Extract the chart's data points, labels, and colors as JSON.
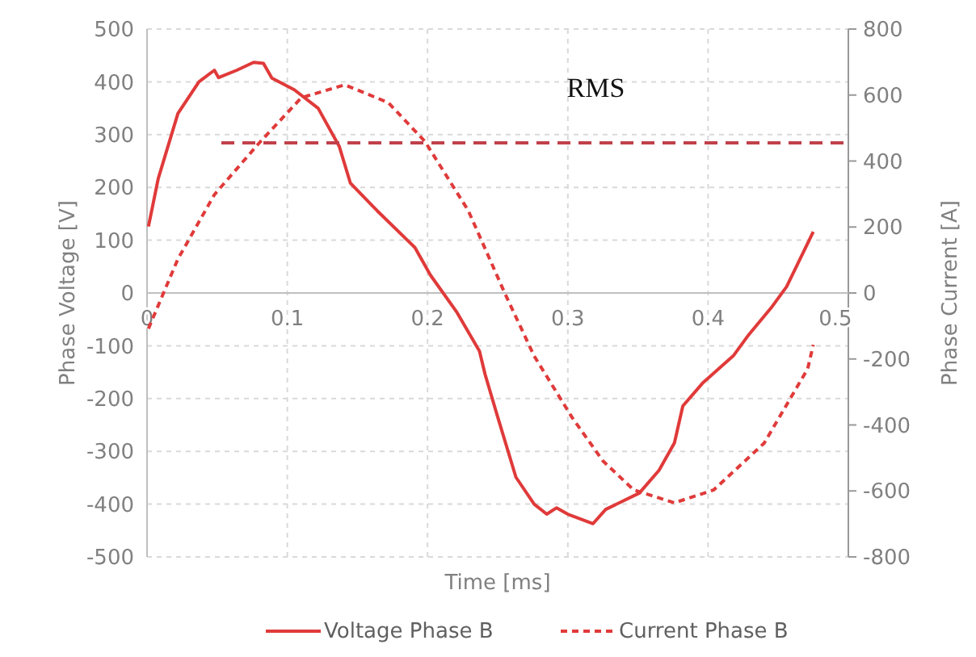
{
  "chart_data": {
    "type": "line",
    "xlabel": "Time [ms]",
    "ylabel": "Phase Voltage [V]",
    "y2label": "Phase Current [A]",
    "xlim": [
      0,
      0.5
    ],
    "xticks": [
      0,
      0.1,
      0.2,
      0.3,
      0.4,
      0.5
    ],
    "ylim": [
      -500,
      500
    ],
    "yticks": [
      -500,
      -400,
      -300,
      -200,
      -100,
      0,
      100,
      200,
      300,
      400,
      500
    ],
    "y2lim": [
      -800,
      800
    ],
    "y2ticks": [
      -800,
      -600,
      -400,
      -200,
      0,
      200,
      400,
      600,
      800
    ],
    "grid": true,
    "legend": "bottom",
    "annotations": [
      "RMS"
    ],
    "series": [
      {
        "name": "Voltage Phase B",
        "color": "#e03a3a",
        "line_style": "solid",
        "x": [
          0.001,
          0.008,
          0.022,
          0.037,
          0.048,
          0.051,
          0.064,
          0.076,
          0.083,
          0.089,
          0.105,
          0.122,
          0.137,
          0.145,
          0.164,
          0.191,
          0.202,
          0.221,
          0.237,
          0.241,
          0.25,
          0.263,
          0.276,
          0.285,
          0.292,
          0.3,
          0.318,
          0.327,
          0.351,
          0.365,
          0.376,
          0.382,
          0.396,
          0.418,
          0.429,
          0.445,
          0.456,
          0.475
        ],
        "values": [
          126,
          217,
          340,
          400,
          422,
          408,
          422,
          437,
          435,
          407,
          385,
          350,
          278,
          208,
          156,
          86,
          34,
          -37,
          -110,
          -154,
          -235,
          -349,
          -400,
          -419,
          -407,
          -419,
          -437,
          -410,
          -379,
          -336,
          -284,
          -214,
          -171,
          -119,
          -79,
          -28,
          12,
          116
        ]
      },
      {
        "name": "Current Phase B",
        "color": "#e03a3a",
        "line_style": "dashed",
        "axis": "y2",
        "x": [
          0.001,
          0.022,
          0.048,
          0.08,
          0.11,
          0.141,
          0.172,
          0.198,
          0.229,
          0.255,
          0.276,
          0.303,
          0.325,
          0.347,
          0.376,
          0.404,
          0.44,
          0.471,
          0.475
        ],
        "values": [
          -108,
          103,
          298,
          455,
          592,
          631,
          577,
          460,
          250,
          0,
          -191,
          -377,
          -509,
          -597,
          -636,
          -597,
          -455,
          -230,
          -157
        ]
      },
      {
        "color": "#c0404a",
        "line_style": "dashed",
        "axis": "y2",
        "x": [
          0.053,
          0.5
        ],
        "values": [
          455,
          455
        ]
      }
    ]
  }
}
